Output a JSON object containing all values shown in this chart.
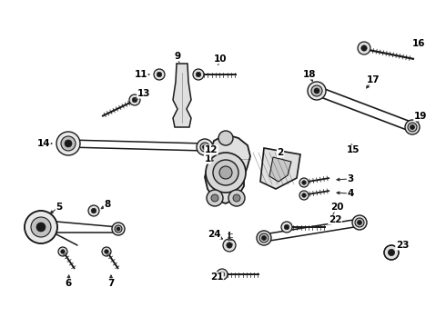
{
  "background_color": "#ffffff",
  "fig_width": 4.9,
  "fig_height": 3.6,
  "dpi": 100,
  "line_color": "#1a1a1a",
  "font_size": 7.5
}
